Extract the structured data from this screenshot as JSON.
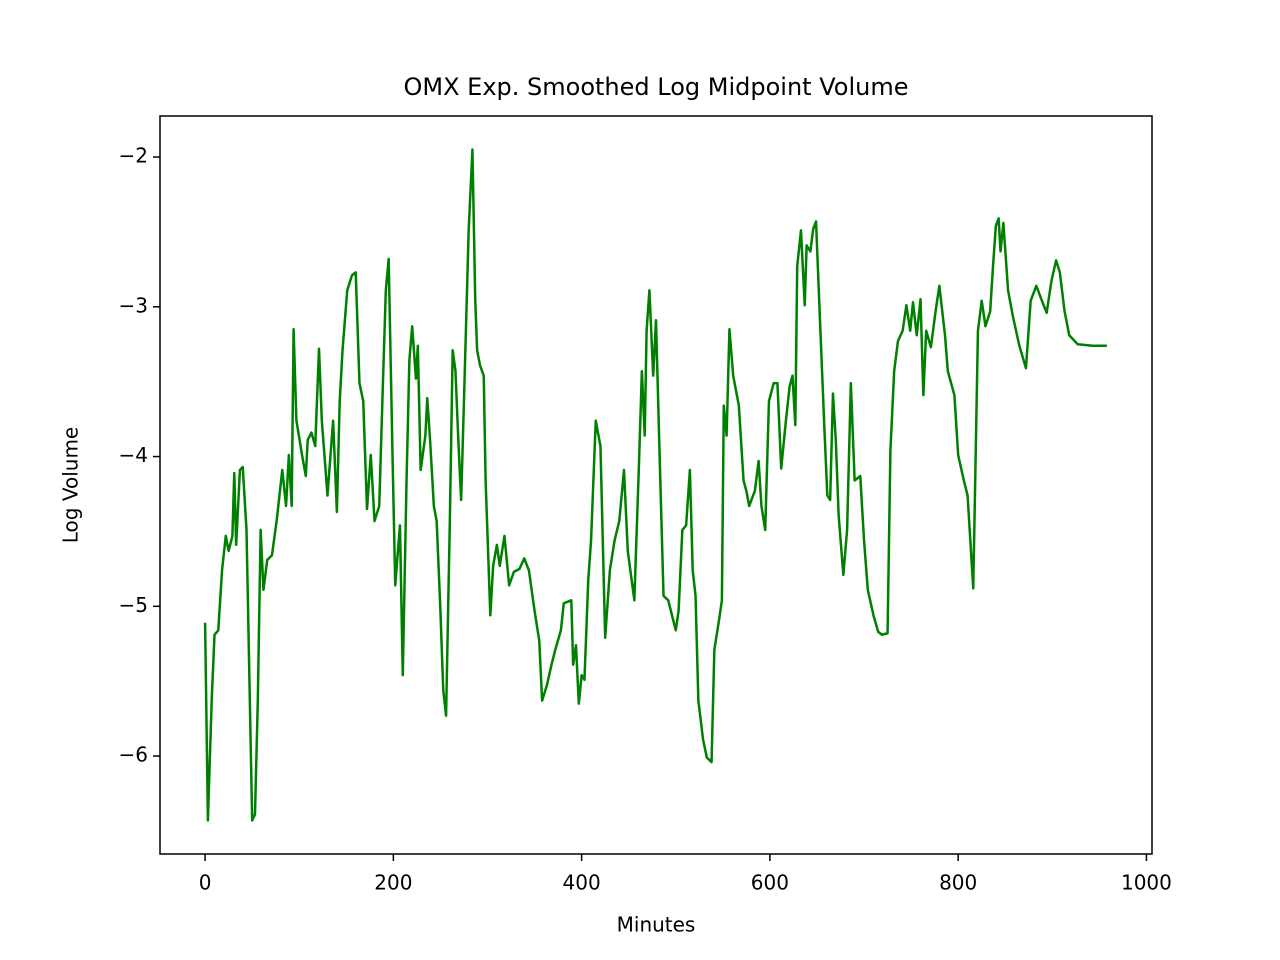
{
  "chart_data": {
    "type": "line",
    "title": "OMX Exp. Smoothed Log Midpoint Volume",
    "x_label": "Minutes",
    "y_label": "Log Volume",
    "x": [
      0,
      3,
      7,
      10,
      14,
      18,
      22,
      25,
      29,
      31,
      33,
      37,
      40,
      44,
      50,
      53,
      56,
      59,
      62,
      66,
      71,
      76,
      82,
      86,
      89,
      92,
      94,
      97,
      103,
      107,
      109,
      113,
      117,
      121,
      124,
      128,
      130,
      136,
      140,
      143,
      146,
      151,
      156,
      160,
      164,
      168,
      172,
      176,
      180,
      185,
      189,
      192,
      195,
      199,
      202,
      207,
      210,
      214,
      217,
      220,
      224,
      226,
      229,
      234,
      236,
      239,
      243,
      246,
      250,
      253,
      256,
      260,
      263,
      266,
      269,
      272,
      275,
      280,
      284,
      287,
      289,
      292,
      296,
      298,
      303,
      306,
      310,
      313,
      318,
      323,
      328,
      334,
      339,
      344,
      350,
      355,
      358,
      363,
      368,
      372,
      378,
      381,
      389,
      391,
      394,
      397,
      400,
      403,
      407,
      410,
      415,
      420,
      425,
      430,
      435,
      440,
      445,
      449,
      456,
      461,
      464,
      467,
      469,
      472,
      476,
      479,
      483,
      487,
      492,
      496,
      500,
      503,
      507,
      511,
      515,
      518,
      521,
      524,
      529,
      533,
      538,
      541,
      546,
      549,
      551,
      554,
      557,
      561,
      567,
      572,
      575,
      578,
      584,
      588,
      591,
      595,
      599,
      604,
      608,
      612,
      617,
      621,
      624,
      627,
      629,
      633,
      637,
      639,
      643,
      646,
      649,
      653,
      658,
      661,
      664,
      667,
      670,
      673,
      678,
      682,
      686,
      690,
      696,
      700,
      704,
      710,
      715,
      719,
      725,
      728,
      732,
      736,
      741,
      745,
      749,
      752,
      756,
      760,
      763,
      766,
      771,
      776,
      780,
      786,
      789,
      796,
      800,
      806,
      810,
      816,
      821,
      825,
      829,
      834,
      837,
      840,
      843,
      845,
      848,
      853,
      858,
      865,
      872,
      877,
      883,
      889,
      894,
      899,
      904,
      908,
      913,
      918,
      927,
      943,
      958
    ],
    "series": [
      {
        "name": "OMX",
        "color": "#008000",
        "values": [
          -5.11,
          -6.43,
          -5.63,
          -5.19,
          -5.16,
          -4.76,
          -4.53,
          -4.63,
          -4.53,
          -4.11,
          -4.59,
          -4.09,
          -4.07,
          -4.49,
          -6.43,
          -6.39,
          -5.63,
          -4.49,
          -4.89,
          -4.69,
          -4.66,
          -4.43,
          -4.09,
          -4.33,
          -3.99,
          -4.33,
          -3.15,
          -3.76,
          -3.99,
          -4.13,
          -3.89,
          -3.84,
          -3.93,
          -3.28,
          -3.76,
          -4.09,
          -4.26,
          -3.76,
          -4.37,
          -3.63,
          -3.29,
          -2.89,
          -2.79,
          -2.77,
          -3.51,
          -3.63,
          -4.35,
          -3.99,
          -4.43,
          -4.33,
          -3.49,
          -2.89,
          -2.68,
          -3.96,
          -4.86,
          -4.46,
          -5.46,
          -4.16,
          -3.36,
          -3.13,
          -3.48,
          -3.26,
          -4.09,
          -3.86,
          -3.61,
          -3.89,
          -4.33,
          -4.43,
          -5.03,
          -5.56,
          -5.73,
          -4.43,
          -3.29,
          -3.43,
          -3.89,
          -4.29,
          -3.63,
          -2.49,
          -1.95,
          -2.96,
          -3.29,
          -3.39,
          -3.46,
          -4.16,
          -5.06,
          -4.73,
          -4.59,
          -4.73,
          -4.53,
          -4.86,
          -4.77,
          -4.75,
          -4.68,
          -4.76,
          -5.03,
          -5.23,
          -5.63,
          -5.53,
          -5.39,
          -5.29,
          -5.16,
          -4.98,
          -4.96,
          -5.39,
          -5.26,
          -5.65,
          -5.46,
          -5.49,
          -4.83,
          -4.56,
          -3.76,
          -3.93,
          -5.21,
          -4.76,
          -4.56,
          -4.43,
          -4.09,
          -4.63,
          -4.96,
          -4.03,
          -3.43,
          -3.86,
          -3.16,
          -2.89,
          -3.46,
          -3.09,
          -4.03,
          -4.93,
          -4.96,
          -5.06,
          -5.16,
          -5.03,
          -4.49,
          -4.46,
          -4.09,
          -4.76,
          -4.93,
          -5.63,
          -5.89,
          -6.01,
          -6.04,
          -5.29,
          -5.09,
          -4.96,
          -3.66,
          -3.86,
          -3.15,
          -3.46,
          -3.66,
          -4.16,
          -4.23,
          -4.33,
          -4.23,
          -4.03,
          -4.33,
          -4.49,
          -3.63,
          -3.51,
          -3.51,
          -4.08,
          -3.76,
          -3.53,
          -3.46,
          -3.79,
          -2.73,
          -2.49,
          -2.99,
          -2.59,
          -2.63,
          -2.48,
          -2.43,
          -3.06,
          -3.83,
          -4.26,
          -4.29,
          -3.58,
          -3.89,
          -4.39,
          -4.79,
          -4.49,
          -3.51,
          -4.16,
          -4.13,
          -4.56,
          -4.89,
          -5.06,
          -5.17,
          -5.19,
          -5.18,
          -3.96,
          -3.43,
          -3.23,
          -3.16,
          -2.99,
          -3.16,
          -2.97,
          -3.19,
          -2.95,
          -3.59,
          -3.16,
          -3.27,
          -3.03,
          -2.86,
          -3.19,
          -3.43,
          -3.59,
          -3.99,
          -4.16,
          -4.26,
          -4.88,
          -3.16,
          -2.96,
          -3.13,
          -3.03,
          -2.73,
          -2.46,
          -2.41,
          -2.63,
          -2.44,
          -2.89,
          -3.06,
          -3.26,
          -3.41,
          -2.96,
          -2.86,
          -2.96,
          -3.04,
          -2.83,
          -2.69,
          -2.77,
          -3.03,
          -3.19,
          -3.25,
          -3.26,
          -3.26
        ]
      }
    ],
    "xlim": [
      -47.9,
      1005.9
    ],
    "ylim": [
      -6.654,
      -1.726
    ],
    "xticks": [
      0,
      200,
      400,
      600,
      800,
      1000
    ],
    "yticks": [
      {
        "value": -6,
        "label": "−6"
      },
      {
        "value": -5,
        "label": "−5"
      },
      {
        "value": -4,
        "label": "−4"
      },
      {
        "value": -3,
        "label": "−3"
      },
      {
        "value": -2,
        "label": "−2"
      }
    ],
    "grid": false
  }
}
